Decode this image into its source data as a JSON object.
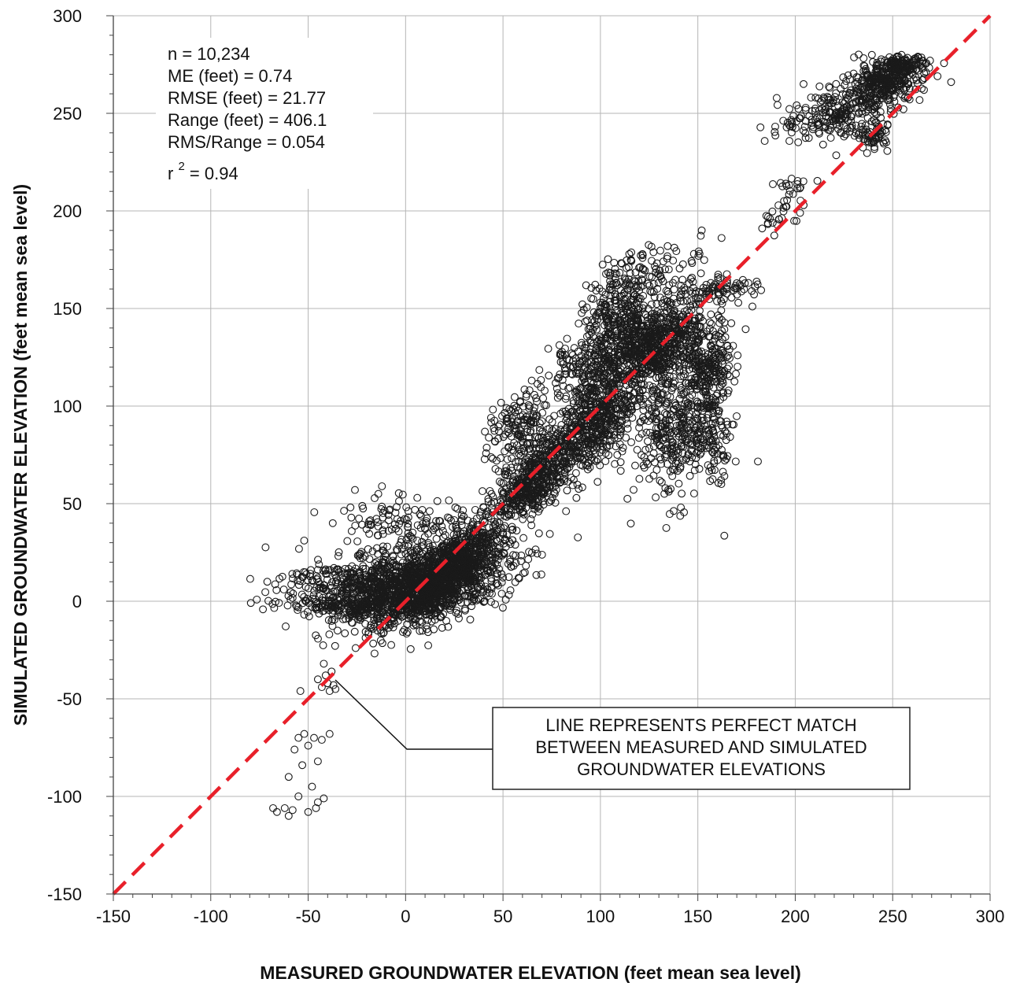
{
  "chart_data": {
    "type": "scatter",
    "title": "",
    "xlabel": "MEASURED GROUNDWATER ELEVATION (feet mean sea level)",
    "ylabel": "SIMULATED GROUNDWATER ELEVATION (feet mean sea level)",
    "xlim": [
      -150,
      300
    ],
    "ylim": [
      -150,
      300
    ],
    "x_ticks": [
      -150,
      -100,
      -50,
      0,
      50,
      100,
      150,
      200,
      250,
      300
    ],
    "y_ticks": [
      -150,
      -100,
      -50,
      0,
      50,
      100,
      150,
      200,
      250,
      300
    ],
    "x_tick_labels": [
      "-150",
      "-100",
      "-50",
      "0",
      "50",
      "100",
      "150",
      "200",
      "250",
      "300"
    ],
    "y_tick_labels": [
      "-150",
      "-100",
      "-50",
      "0",
      "50",
      "100",
      "150",
      "200",
      "250",
      "300"
    ],
    "grid": true,
    "marker": "open-circle",
    "reference_line": {
      "from": [
        -150,
        -150
      ],
      "to": [
        300,
        300
      ],
      "color": "#e8202a",
      "style": "dashed"
    },
    "stats": {
      "n": "n = 10,234",
      "me": "ME (feet) = 0.74",
      "rmse": "RMSE (feet) = 21.77",
      "range": "Range (feet) = 406.1",
      "rms_range": "RMS/Range = 0.054",
      "r2_prefix": "r",
      "r2_exponent": "2",
      "r2_suffix": " = 0.94"
    },
    "annotation": {
      "lines": [
        "LINE REPRESENTS PERFECT MATCH",
        "BETWEEN MEASURED AND SIMULATED",
        "GROUNDWATER ELEVATIONS"
      ],
      "points_to": [
        -38,
        -42
      ]
    },
    "point_clusters": [
      {
        "cx": 10,
        "cy": 8,
        "sx": 22,
        "sy": 11,
        "n": 1300,
        "corr": 0.55
      },
      {
        "cx": 25,
        "cy": 18,
        "sx": 12,
        "sy": 12,
        "n": 600,
        "corr": 0.7
      },
      {
        "cx": -20,
        "cy": 10,
        "sx": 22,
        "sy": 6,
        "n": 350,
        "corr": 0.1
      },
      {
        "cx": -25,
        "cy": -2,
        "sx": 18,
        "sy": 3,
        "n": 180,
        "corr": 0
      },
      {
        "cx": -10,
        "cy": 35,
        "sx": 15,
        "sy": 10,
        "n": 90,
        "corr": 0
      },
      {
        "cx": 15,
        "cy": 40,
        "sx": 18,
        "sy": 6,
        "n": 60,
        "corr": 0
      },
      {
        "cx": 65,
        "cy": 62,
        "sx": 9,
        "sy": 10,
        "n": 450,
        "corr": 0.6
      },
      {
        "cx": 58,
        "cy": 88,
        "sx": 8,
        "sy": 10,
        "n": 150,
        "corr": 0.3
      },
      {
        "cx": 95,
        "cy": 90,
        "sx": 12,
        "sy": 14,
        "n": 600,
        "corr": 0.5
      },
      {
        "cx": 125,
        "cy": 130,
        "sx": 15,
        "sy": 12,
        "n": 800,
        "corr": 0.5
      },
      {
        "cx": 108,
        "cy": 145,
        "sx": 10,
        "sy": 10,
        "n": 220,
        "corr": 0.3
      },
      {
        "cx": 138,
        "cy": 88,
        "sx": 10,
        "sy": 18,
        "n": 350,
        "corr": 0
      },
      {
        "cx": 155,
        "cy": 118,
        "sx": 6,
        "sy": 8,
        "n": 180,
        "corr": 0.2
      },
      {
        "cx": 158,
        "cy": 90,
        "sx": 5,
        "sy": 13,
        "n": 120,
        "corr": 0
      },
      {
        "cx": 125,
        "cy": 168,
        "sx": 15,
        "sy": 8,
        "n": 120,
        "corr": 0.4
      },
      {
        "cx": 160,
        "cy": 160,
        "sx": 10,
        "sy": 4,
        "n": 80,
        "corr": 0.3
      },
      {
        "cx": 88,
        "cy": 120,
        "sx": 8,
        "sy": 8,
        "n": 100,
        "corr": 0.2
      },
      {
        "cx": 245,
        "cy": 265,
        "sx": 10,
        "sy": 6,
        "n": 350,
        "corr": 0.3
      },
      {
        "cx": 220,
        "cy": 250,
        "sx": 14,
        "sy": 7,
        "n": 200,
        "corr": 0.4
      },
      {
        "cx": 240,
        "cy": 238,
        "sx": 4,
        "sy": 3,
        "n": 60,
        "corr": 0
      },
      {
        "cx": 195,
        "cy": 205,
        "sx": 6,
        "sy": 8,
        "n": 40,
        "corr": 0.5
      },
      {
        "cx": 255,
        "cy": 275,
        "sx": 6,
        "sy": 2,
        "n": 90,
        "corr": 0
      }
    ],
    "outlier_points": [
      [
        -71,
        10
      ],
      [
        -48,
        -3
      ],
      [
        -42,
        -32
      ],
      [
        -38,
        -36
      ],
      [
        -41,
        -38
      ],
      [
        -45,
        -40
      ],
      [
        -40,
        -42
      ],
      [
        -37,
        -43
      ],
      [
        -43,
        -44
      ],
      [
        -39,
        -46
      ],
      [
        -54,
        -46
      ],
      [
        -36,
        -45
      ],
      [
        -52,
        -68
      ],
      [
        -55,
        -70
      ],
      [
        -47,
        -70
      ],
      [
        -43,
        -71
      ],
      [
        -39,
        -68
      ],
      [
        -50,
        -74
      ],
      [
        -57,
        -76
      ],
      [
        -45,
        -82
      ],
      [
        -53,
        -84
      ],
      [
        -60,
        -90
      ],
      [
        -48,
        -95
      ],
      [
        -55,
        -100
      ],
      [
        -45,
        -103
      ],
      [
        -42,
        -101
      ],
      [
        -62,
        -106
      ],
      [
        -66,
        -108
      ],
      [
        -60,
        -110
      ],
      [
        -50,
        -108
      ],
      [
        -46,
        -106
      ],
      [
        -58,
        -107
      ],
      [
        -68,
        -106
      ],
      [
        183,
        191
      ],
      [
        187,
        196
      ],
      [
        -26,
        57
      ],
      [
        -14,
        55
      ],
      [
        6,
        53
      ],
      [
        -8,
        47
      ],
      [
        40,
        48
      ],
      [
        44,
        50
      ],
      [
        280,
        266
      ],
      [
        273,
        269
      ],
      [
        170,
        163
      ],
      [
        165,
        160
      ],
      [
        178,
        151
      ],
      [
        152,
        190
      ],
      [
        148,
        178
      ]
    ]
  }
}
